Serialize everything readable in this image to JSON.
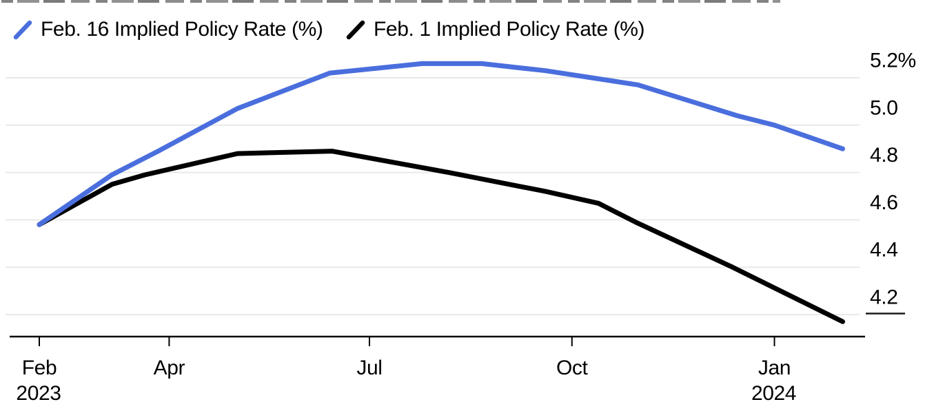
{
  "legend": {
    "items": [
      {
        "label": "Feb. 16 Implied Policy Rate (%)",
        "color": "#4a6edd"
      },
      {
        "label": "Feb. 1 Implied Policy Rate (%)",
        "color": "#000000"
      }
    ]
  },
  "chart_data": {
    "type": "line",
    "title": "",
    "x_unit": "days since Feb 1 2023",
    "xlim_days": [
      0,
      365
    ],
    "ylim": [
      4.1,
      5.3
    ],
    "grid": true,
    "legend_position": "top-left",
    "y_axis": {
      "side": "right",
      "ticks": [
        {
          "label": "5.2%",
          "value": 5.2
        },
        {
          "label": "5.0",
          "value": 5.0
        },
        {
          "label": "4.8",
          "value": 4.8
        },
        {
          "label": "4.6",
          "value": 4.6
        },
        {
          "label": "4.4",
          "value": 4.4
        },
        {
          "label": "4.2",
          "value": 4.2
        }
      ]
    },
    "x_axis": {
      "ticks": [
        {
          "label": "Feb",
          "year_label": "2023",
          "day": 0
        },
        {
          "label": "Apr",
          "year_label": "",
          "day": 59
        },
        {
          "label": "Jul",
          "year_label": "",
          "day": 150
        },
        {
          "label": "Oct",
          "year_label": "",
          "day": 242
        },
        {
          "label": "Jan",
          "year_label": "2024",
          "day": 334
        }
      ]
    },
    "series": [
      {
        "name": "Feb. 16 Implied Policy Rate (%)",
        "color": "#4a6edd",
        "points": [
          [
            0,
            4.58
          ],
          [
            33,
            4.79
          ],
          [
            54,
            4.89
          ],
          [
            90,
            5.07
          ],
          [
            132,
            5.22
          ],
          [
            174,
            5.26
          ],
          [
            201,
            5.26
          ],
          [
            230,
            5.23
          ],
          [
            251,
            5.2
          ],
          [
            272,
            5.17
          ],
          [
            317,
            5.04
          ],
          [
            334,
            5.0
          ],
          [
            365,
            4.9
          ]
        ]
      },
      {
        "name": "Feb. 1 Implied Policy Rate (%)",
        "color": "#000000",
        "points": [
          [
            0,
            4.58
          ],
          [
            33,
            4.75
          ],
          [
            48,
            4.79
          ],
          [
            90,
            4.88
          ],
          [
            133,
            4.89
          ],
          [
            186,
            4.8
          ],
          [
            230,
            4.72
          ],
          [
            254,
            4.67
          ],
          [
            271,
            4.59
          ],
          [
            315,
            4.4
          ],
          [
            365,
            4.17
          ]
        ]
      }
    ]
  }
}
